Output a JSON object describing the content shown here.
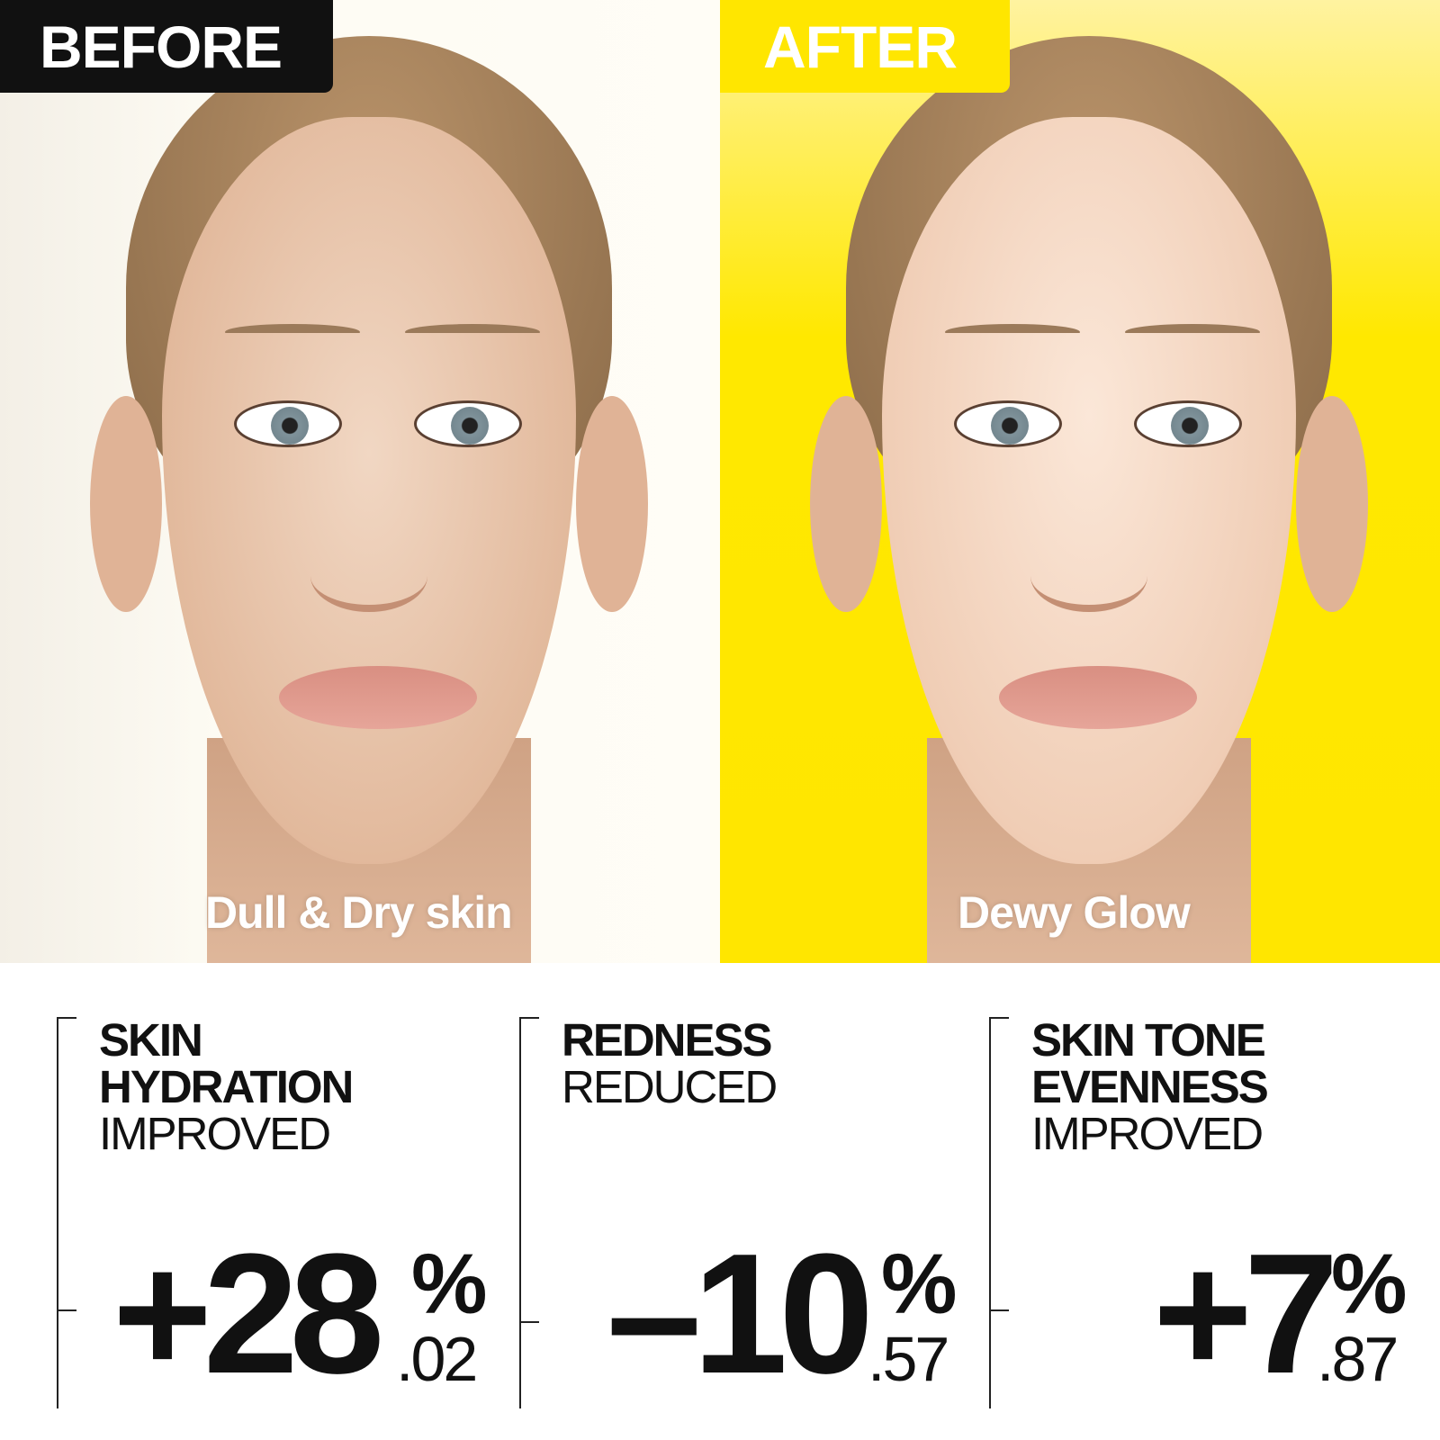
{
  "before": {
    "label": "BEFORE",
    "caption": "Dull & Dry skin",
    "background": "#fdfbf3",
    "tag_color": "#111111"
  },
  "after": {
    "label": "AFTER",
    "caption": "Dewy Glow",
    "background": "#ffe600",
    "tag_color": "#ffe600"
  },
  "stats": [
    {
      "bold": [
        "SKIN",
        "HYDRATION"
      ],
      "regular": [
        "IMPROVED"
      ],
      "value": "+28",
      "percent": "%",
      "decimal": ".02"
    },
    {
      "bold": [
        "REDNESS"
      ],
      "regular": [
        "REDUCED"
      ],
      "value": "–10",
      "percent": "%",
      "decimal": ".57"
    },
    {
      "bold": [
        "SKIN TONE",
        "EVENNESS"
      ],
      "regular": [
        "IMPROVED"
      ],
      "value": "+7",
      "percent": "%",
      "decimal": ".87"
    }
  ]
}
